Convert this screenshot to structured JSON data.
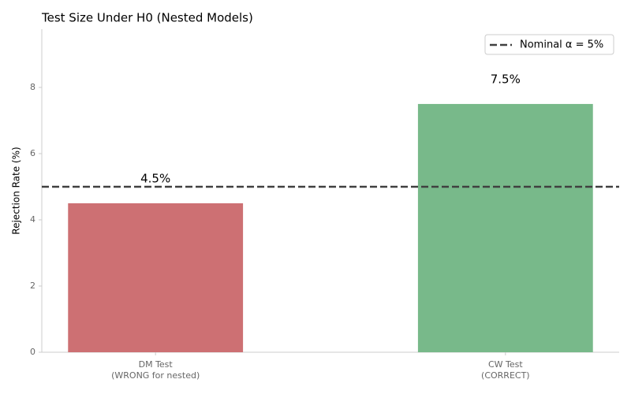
{
  "chart_data": {
    "type": "bar",
    "title": "Test Size Under H0 (Nested Models)",
    "y_label": "Rejection Rate (%)",
    "categories": [
      "DM Test\n(WRONG for nested)",
      "CW Test\n(CORRECT)"
    ],
    "values": [
      4.5,
      7.5
    ],
    "value_labels": [
      "4.5%",
      "7.5%"
    ],
    "colors": [
      "#cd7073",
      "#78b98a"
    ],
    "ylim": [
      0,
      9.76
    ],
    "yticks": [
      0,
      2,
      4,
      6,
      8
    ],
    "reference_line": {
      "value": 5,
      "label": "Nominal α = 5%",
      "color": "#404040"
    },
    "legend": "upper right"
  }
}
